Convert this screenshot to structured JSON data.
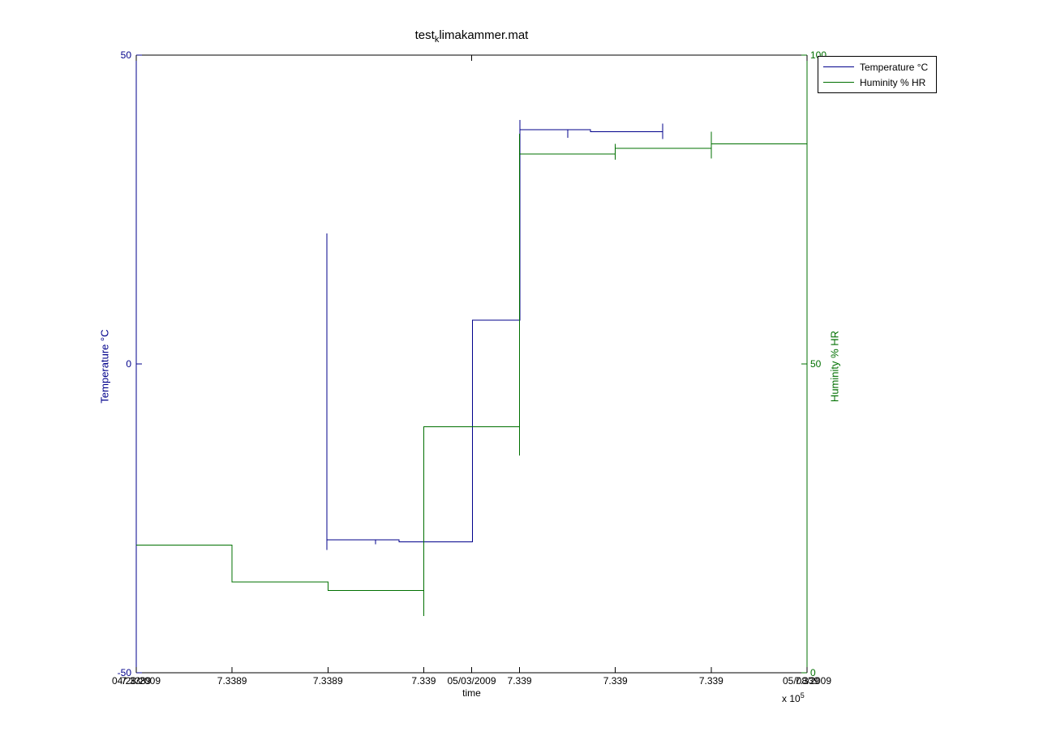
{
  "title": {
    "prefix": "test",
    "sub": "k",
    "suffix": "limakammer.mat"
  },
  "xlabel": "time",
  "x_exponent": {
    "base": "x 10",
    "exp": "5"
  },
  "legend": {
    "items": [
      {
        "label": "Temperature °C",
        "series": "temperature"
      },
      {
        "label": "Huminity % HR",
        "series": "humidity"
      }
    ]
  },
  "chart_data": {
    "type": "line",
    "title": "test_klimakammer.mat",
    "xlabel": "time",
    "x_unit_multiplier": "x 10^5",
    "legend_position": "northeast-outside",
    "grid": false,
    "axes": {
      "x_date": {
        "range": [
          733891,
          733901
        ],
        "ticks": [
          {
            "v": 733891,
            "label": "04/28/2009"
          },
          {
            "v": 733896,
            "label": "05/03/2009"
          },
          {
            "v": 733901,
            "label": "05/08/2009"
          }
        ],
        "color": "#000000"
      },
      "x_numeric": {
        "range": [
          733890,
          733904
        ],
        "ticks": [
          {
            "v": 733890,
            "label": "7.3389"
          },
          {
            "v": 733892,
            "label": "7.3389"
          },
          {
            "v": 733894,
            "label": "7.3389"
          },
          {
            "v": 733896,
            "label": "7.339"
          },
          {
            "v": 733898,
            "label": "7.339"
          },
          {
            "v": 733900,
            "label": "7.339"
          },
          {
            "v": 733902,
            "label": "7.339"
          },
          {
            "v": 733904,
            "label": "7.339"
          }
        ],
        "color": "#000000"
      },
      "y_left": {
        "label": "Temperature °C",
        "range": [
          -50,
          50
        ],
        "ticks": [
          {
            "v": 50,
            "label": "50"
          },
          {
            "v": 0,
            "label": "0"
          },
          {
            "v": -50,
            "label": "-50"
          }
        ],
        "color": "#00008B"
      },
      "y_right": {
        "label": "Huminity % HR",
        "range": [
          0,
          100
        ],
        "ticks": [
          {
            "v": 100,
            "label": "100"
          },
          {
            "v": 50,
            "label": "50"
          },
          {
            "v": 0,
            "label": "0"
          }
        ],
        "color": "#007000"
      }
    },
    "series": [
      {
        "id": "temperature",
        "name": "Temperature °C",
        "color": "#00008B",
        "x_axis": "x_date",
        "y_axis": "y_left",
        "points": [
          [
            733893.84,
            21.1
          ],
          [
            733893.84,
            -30.1
          ],
          [
            733893.84,
            -28.5
          ],
          [
            733894.57,
            -28.5
          ],
          [
            733894.57,
            -29.2
          ],
          [
            733894.57,
            -28.5
          ],
          [
            733894.92,
            -28.5
          ],
          [
            733894.92,
            -28.8
          ],
          [
            733896.01,
            -28.8
          ],
          [
            733896.01,
            7.1
          ],
          [
            733896.72,
            7.1
          ],
          [
            733896.72,
            39.5
          ],
          [
            733896.72,
            36.3
          ],
          [
            733896.72,
            37.9
          ],
          [
            733897.43,
            37.9
          ],
          [
            733897.43,
            36.6
          ],
          [
            733897.43,
            37.9
          ],
          [
            733897.77,
            37.9
          ],
          [
            733897.77,
            37.6
          ],
          [
            733898.85,
            37.6
          ],
          [
            733898.85,
            38.9
          ],
          [
            733898.85,
            36.4
          ]
        ]
      },
      {
        "id": "humidity",
        "name": "Huminity % HR",
        "color": "#007000",
        "x_axis": "x_numeric",
        "y_axis": "y_right",
        "points": [
          [
            733890,
            20.7
          ],
          [
            733892,
            20.7
          ],
          [
            733892,
            14.7
          ],
          [
            733894,
            14.7
          ],
          [
            733894,
            13.3
          ],
          [
            733896,
            13.3
          ],
          [
            733896,
            9.2
          ],
          [
            733896,
            39.8
          ],
          [
            733898,
            39.8
          ],
          [
            733898,
            35.2
          ],
          [
            733898,
            87.3
          ],
          [
            733898,
            84.0
          ],
          [
            733900,
            84.0
          ],
          [
            733900,
            85.6
          ],
          [
            733900,
            83.1
          ],
          [
            733900,
            84.9
          ],
          [
            733902,
            84.9
          ],
          [
            733902,
            87.6
          ],
          [
            733902,
            83.3
          ],
          [
            733902,
            85.6
          ],
          [
            733904,
            85.6
          ]
        ]
      }
    ]
  }
}
